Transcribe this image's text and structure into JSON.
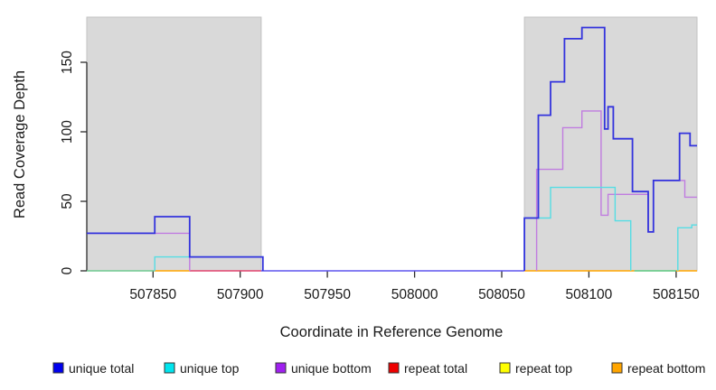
{
  "figure": {
    "xlabel": "Coordinate in Reference Genome",
    "ylabel": "Read Coverage Depth"
  },
  "chart_data": {
    "type": "line",
    "subtype": "step-coverage",
    "title": "",
    "xlabel": "Coordinate in Reference Genome",
    "ylabel": "Read Coverage Depth",
    "xlim": [
      507812,
      508162
    ],
    "ylim": [
      0,
      182.5
    ],
    "x_ticks": [
      507850,
      507900,
      507950,
      508000,
      508050,
      508100,
      508150
    ],
    "y_ticks": [
      0,
      50,
      100,
      150
    ],
    "grid": false,
    "legend_position": "bottom",
    "axis_color": "#2b2b2b",
    "background_bands": {
      "color": "#d9d9d9",
      "border_color": "#c2c2c2",
      "regions": [
        [
          507812,
          507912
        ],
        [
          508063,
          508162
        ]
      ]
    },
    "baseline_segments": [
      {
        "from": 507812,
        "to": 507851,
        "color": "#6fc98f"
      },
      {
        "from": 507851,
        "to": 507871,
        "color": "#ffa500"
      },
      {
        "from": 507871,
        "to": 507912,
        "color": "#e0436e"
      },
      {
        "from": 507912,
        "to": 508063,
        "color": "#5f55ee"
      },
      {
        "from": 508063,
        "to": 508126,
        "color": "#ffa500"
      },
      {
        "from": 508126,
        "to": 508150,
        "color": "#5cc77f"
      },
      {
        "from": 508150,
        "to": 508162,
        "color": "#ffa500"
      }
    ],
    "series": [
      {
        "name": "unique total",
        "legend_color": "#0000ee",
        "line_color": "#3333dd",
        "line_width": 1.8,
        "points": [
          [
            507812,
            27
          ],
          [
            507851,
            39
          ],
          [
            507871,
            10
          ],
          [
            507913,
            0
          ],
          [
            508063,
            38
          ],
          [
            508071,
            112
          ],
          [
            508078,
            136
          ],
          [
            508086,
            167
          ],
          [
            508096,
            175
          ],
          [
            508109,
            102
          ],
          [
            508111,
            118
          ],
          [
            508114,
            95
          ],
          [
            508125,
            57
          ],
          [
            508134,
            28
          ],
          [
            508137,
            65
          ],
          [
            508152,
            99
          ],
          [
            508158,
            90
          ]
        ]
      },
      {
        "name": "unique top",
        "legend_color": "#00e5ee",
        "line_color": "#55dde4",
        "line_width": 1.4,
        "points": [
          [
            507812,
            0
          ],
          [
            507851,
            10
          ],
          [
            507913,
            0
          ],
          [
            508063,
            38
          ],
          [
            508078,
            60
          ],
          [
            508115,
            36
          ],
          [
            508124,
            0
          ],
          [
            508151,
            31
          ],
          [
            508159,
            33
          ]
        ]
      },
      {
        "name": "unique bottom",
        "legend_color": "#a020f0",
        "line_color": "#c07ce0",
        "line_width": 1.4,
        "points": [
          [
            507812,
            27
          ],
          [
            507871,
            0
          ],
          [
            508070,
            73
          ],
          [
            508085,
            103
          ],
          [
            508096,
            115
          ],
          [
            508107,
            40
          ],
          [
            508111,
            55
          ],
          [
            508134,
            28
          ],
          [
            508137,
            65
          ],
          [
            508155,
            53
          ]
        ]
      },
      {
        "name": "repeat total",
        "legend_color": "#ee0000",
        "line_color": "#ee0000",
        "line_width": 1.4,
        "points": [
          [
            507812,
            0
          ]
        ]
      },
      {
        "name": "repeat top",
        "legend_color": "#ffff00",
        "line_color": "#ffff00",
        "line_width": 1.4,
        "points": [
          [
            507812,
            0
          ]
        ]
      },
      {
        "name": "repeat bottom",
        "legend_color": "#ffa500",
        "line_color": "#ffa500",
        "line_width": 1.4,
        "points": [
          [
            507812,
            0
          ]
        ]
      }
    ]
  }
}
